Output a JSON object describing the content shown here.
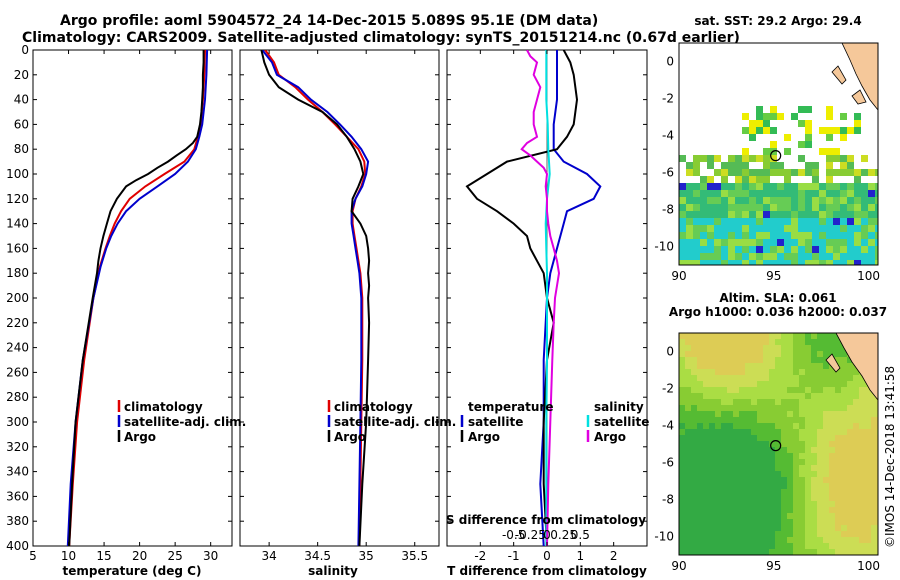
{
  "header": {
    "title_line1": "Argo profile: aoml 5904572_24 14-Dec-2015 5.089S 95.1E (DM data)",
    "title_line2": "Climatology: CARS2009. Satellite-adjusted climatology: synTS_20151214.nc (0.67d earlier)"
  },
  "credit": "©IMOS 14-Dec-2018 13:41:58",
  "colors": {
    "climatology": "#e00000",
    "satellite": "#0000cc",
    "argo": "#000000",
    "sal_satellite": "#00e0e0",
    "sal_argo": "#e000e0",
    "land": "#f5c89a"
  },
  "chart_data": [
    {
      "type": "line",
      "id": "temperature",
      "xlabel": "temperature (deg C)",
      "ylabel": "",
      "xlim": [
        5,
        33
      ],
      "ylim": [
        400,
        0
      ],
      "xticks": [
        "5",
        "10",
        "15",
        "20",
        "25",
        "30"
      ],
      "yticks": [
        "0",
        "20",
        "40",
        "60",
        "80",
        "100",
        "120",
        "140",
        "160",
        "180",
        "200",
        "220",
        "240",
        "260",
        "280",
        "300",
        "320",
        "340",
        "360",
        "380",
        "400"
      ],
      "legend": [
        "climatology",
        "satellite-adj. clim.",
        "Argo"
      ],
      "series": [
        {
          "name": "climatology",
          "depth": [
            0,
            20,
            40,
            60,
            70,
            80,
            90,
            100,
            110,
            120,
            130,
            140,
            150,
            160,
            175,
            200,
            250,
            300,
            350,
            400
          ],
          "values": [
            29.2,
            29.1,
            28.9,
            28.6,
            28.2,
            27.7,
            26.3,
            23.5,
            20.8,
            18.6,
            17.4,
            16.5,
            15.8,
            15.2,
            14.4,
            13.5,
            12.2,
            11.2,
            10.6,
            10.1
          ]
        },
        {
          "name": "satellite-adj. clim.",
          "depth": [
            0,
            20,
            40,
            60,
            70,
            80,
            90,
            100,
            110,
            120,
            130,
            140,
            150,
            160,
            175,
            200,
            250,
            300,
            350,
            400
          ],
          "values": [
            29.5,
            29.4,
            29.2,
            28.8,
            28.4,
            27.9,
            26.8,
            25.0,
            22.5,
            20.0,
            18.1,
            16.9,
            16.0,
            15.3,
            14.5,
            13.5,
            12.0,
            11.0,
            10.3,
            9.9
          ]
        },
        {
          "name": "Argo",
          "depth": [
            0,
            10,
            20,
            30,
            40,
            50,
            60,
            70,
            75,
            80,
            85,
            90,
            95,
            100,
            105,
            110,
            120,
            130,
            140,
            150,
            160,
            170,
            180,
            200,
            250,
            300,
            350,
            400
          ],
          "values": [
            29.0,
            29.0,
            28.9,
            28.9,
            28.8,
            28.7,
            28.5,
            28.1,
            27.5,
            26.5,
            25.2,
            24.0,
            22.5,
            21.2,
            19.5,
            18.1,
            16.8,
            15.9,
            15.4,
            14.9,
            14.5,
            14.2,
            14.0,
            13.4,
            12.0,
            11.0,
            10.5,
            10.1
          ]
        }
      ]
    },
    {
      "type": "line",
      "id": "salinity",
      "xlabel": "salinity",
      "xlim": [
        33.7,
        35.75
      ],
      "ylim": [
        400,
        0
      ],
      "xticks": [
        "34",
        "34.5",
        "35",
        "35.5"
      ],
      "legend": [
        "climatology",
        "satellite-adj. clim.",
        "Argo"
      ],
      "series": [
        {
          "name": "climatology",
          "depth": [
            0,
            10,
            20,
            30,
            40,
            50,
            60,
            70,
            80,
            90,
            100,
            110,
            120,
            130,
            140,
            150,
            160,
            170,
            180,
            200,
            250,
            300,
            350,
            400
          ],
          "values": [
            33.96,
            34.05,
            34.1,
            34.27,
            34.4,
            34.55,
            34.68,
            34.8,
            34.92,
            34.98,
            34.99,
            34.95,
            34.89,
            34.86,
            34.86,
            34.88,
            34.9,
            34.92,
            34.94,
            34.96,
            34.96,
            34.95,
            34.94,
            34.93
          ]
        },
        {
          "name": "satellite-adj. clim.",
          "depth": [
            0,
            10,
            20,
            30,
            40,
            50,
            60,
            70,
            80,
            90,
            100,
            110,
            120,
            130,
            140,
            150,
            160,
            170,
            180,
            200,
            250,
            300,
            350,
            400
          ],
          "values": [
            33.93,
            34.03,
            34.08,
            34.3,
            34.43,
            34.6,
            34.73,
            34.85,
            34.95,
            35.02,
            35.0,
            34.96,
            34.89,
            34.85,
            34.85,
            34.87,
            34.89,
            34.91,
            34.93,
            34.95,
            34.95,
            34.94,
            34.93,
            34.92
          ]
        },
        {
          "name": "Argo",
          "depth": [
            0,
            10,
            20,
            30,
            40,
            50,
            60,
            70,
            80,
            90,
            100,
            110,
            120,
            130,
            140,
            150,
            160,
            170,
            180,
            190,
            200,
            220,
            250,
            300,
            350,
            400
          ],
          "values": [
            33.92,
            33.95,
            34.0,
            34.1,
            34.3,
            34.55,
            34.7,
            34.8,
            34.88,
            34.94,
            34.97,
            34.92,
            34.86,
            34.85,
            34.94,
            35.0,
            35.02,
            35.03,
            35.02,
            35.03,
            35.02,
            35.03,
            35.02,
            35.0,
            34.96,
            34.93
          ]
        }
      ]
    },
    {
      "type": "line",
      "id": "difference",
      "xlabel": "T difference from climatology",
      "top_axis_label": "S difference from climatology",
      "xlim": [
        -3,
        3
      ],
      "ylim": [
        400,
        0
      ],
      "xticks": [
        "-2",
        "-1",
        "0",
        "1",
        "2"
      ],
      "top_ticks": [
        "-0.5",
        "-0.25",
        "0",
        "0.25",
        "0.5"
      ],
      "top_ticks_values": [
        -0.5,
        -0.25,
        0,
        0.25,
        0.5
      ],
      "s_scale": 0.5,
      "legend_temperature": [
        "temperature",
        "satellite",
        "Argo"
      ],
      "legend_salinity": [
        "salinity",
        "satellite",
        "Argo"
      ],
      "series": [
        {
          "name": "T satellite",
          "depth": [
            0,
            20,
            40,
            60,
            80,
            90,
            100,
            110,
            120,
            130,
            140,
            160,
            180,
            200,
            250,
            300,
            350,
            400
          ],
          "values": [
            0.3,
            0.3,
            0.3,
            0.2,
            0.2,
            0.5,
            1.2,
            1.6,
            1.4,
            0.6,
            0.5,
            0.3,
            0.1,
            0.0,
            -0.1,
            -0.1,
            -0.2,
            -0.1
          ]
        },
        {
          "name": "T Argo",
          "depth": [
            0,
            10,
            20,
            40,
            60,
            70,
            80,
            90,
            100,
            110,
            120,
            130,
            140,
            150,
            160,
            170,
            180,
            200,
            220,
            250,
            300,
            350,
            400
          ],
          "values": [
            0.5,
            0.7,
            0.8,
            0.9,
            0.8,
            0.6,
            0.3,
            -1.2,
            -1.8,
            -2.4,
            -2.1,
            -1.5,
            -1.0,
            -0.6,
            -0.5,
            -0.3,
            -0.1,
            0.0,
            0.2,
            0.0,
            -0.1,
            -0.1,
            0.0
          ]
        },
        {
          "name": "S satellite",
          "depth": [
            0,
            20,
            40,
            60,
            80,
            100,
            120,
            140,
            160,
            180,
            200,
            250,
            300,
            350,
            400
          ],
          "values": [
            -0.01,
            -0.01,
            -0.01,
            0.01,
            0.02,
            0.04,
            0.0,
            -0.02,
            -0.01,
            0.0,
            0.0,
            0.0,
            -0.01,
            -0.01,
            -0.01
          ]
        },
        {
          "name": "S Argo",
          "depth": [
            0,
            5,
            10,
            20,
            30,
            40,
            50,
            60,
            70,
            75,
            80,
            85,
            90,
            95,
            100,
            110,
            120,
            130,
            140,
            150,
            160,
            170,
            180,
            190,
            200,
            220,
            250,
            300,
            350,
            400
          ],
          "values": [
            -0.3,
            -0.25,
            -0.15,
            -0.2,
            -0.1,
            -0.15,
            -0.2,
            -0.2,
            -0.15,
            -0.3,
            -0.38,
            -0.25,
            -0.15,
            -0.05,
            0.0,
            -0.02,
            0.0,
            0.0,
            0.02,
            0.05,
            0.1,
            0.15,
            0.18,
            0.15,
            0.12,
            0.1,
            0.08,
            0.05,
            0.02,
            0.0
          ]
        }
      ]
    },
    {
      "type": "heatmap",
      "id": "sst_map",
      "title": "sat. SST: 29.2 Argo: 29.4",
      "xlim": [
        90,
        100.5
      ],
      "ylim": [
        -11,
        1
      ],
      "xticks": [
        "90",
        "95",
        "100"
      ],
      "yticks": [
        "0",
        "-2",
        "-4",
        "-6",
        "-8",
        "-10"
      ],
      "argo_position": [
        95.1,
        -5.089
      ]
    },
    {
      "type": "heatmap",
      "id": "sla_map",
      "title_line1": "Altim. SLA: 0.061",
      "title_line2": "Argo h1000: 0.036 h2000: 0.037",
      "xlim": [
        90,
        100.5
      ],
      "ylim": [
        -11,
        1
      ],
      "xticks": [
        "90",
        "95",
        "100"
      ],
      "yticks": [
        "0",
        "-2",
        "-4",
        "-6",
        "-8",
        "-10"
      ],
      "argo_position": [
        95.1,
        -5.089
      ]
    }
  ]
}
